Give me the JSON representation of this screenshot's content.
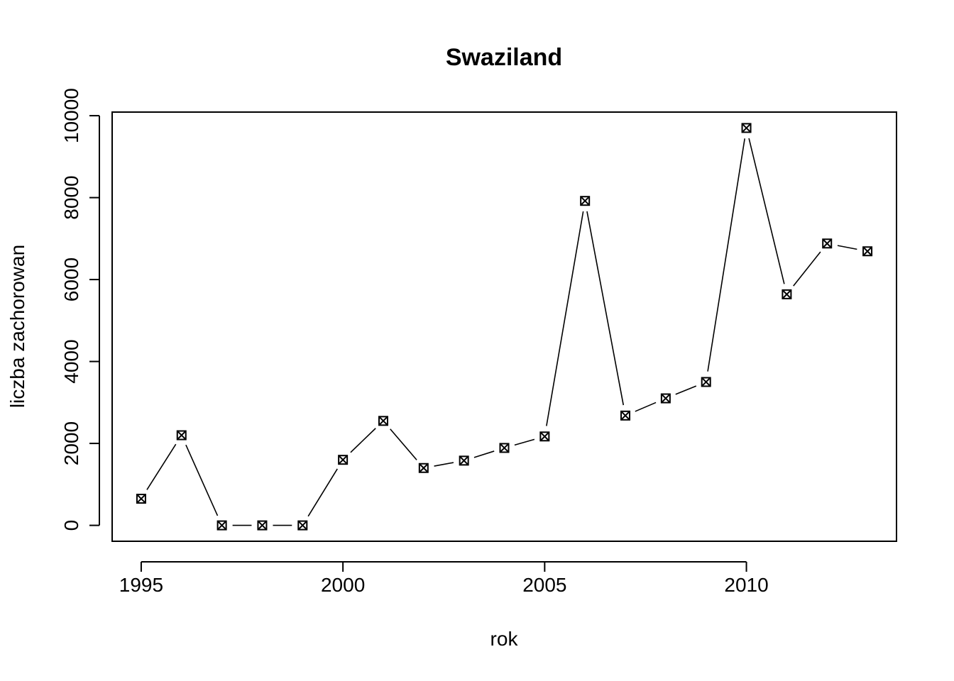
{
  "chart_data": {
    "type": "line",
    "title": "Swaziland",
    "xlabel": "rok",
    "ylabel": "liczba zachorowan",
    "x": [
      1995,
      1996,
      1997,
      1998,
      1999,
      2000,
      2001,
      2002,
      2003,
      2004,
      2005,
      2006,
      2007,
      2008,
      2009,
      2010,
      2011,
      2012,
      2013
    ],
    "series": [
      {
        "values": [
          650,
          2200,
          0,
          0,
          0,
          1600,
          2550,
          1400,
          1580,
          1890,
          2170,
          7920,
          2680,
          3100,
          3500,
          9700,
          5640,
          6880,
          6690
        ]
      }
    ],
    "xticks": [
      1995,
      2000,
      2005,
      2010
    ],
    "yticks": [
      0,
      2000,
      4000,
      6000,
      8000,
      10000
    ],
    "xlim": [
      1994.28,
      2013.72
    ],
    "ylim": [
      -388,
      10088
    ],
    "marker": "boxed-x",
    "line_style": "segments with gaps (type b)",
    "grid": false,
    "legend": "none"
  }
}
